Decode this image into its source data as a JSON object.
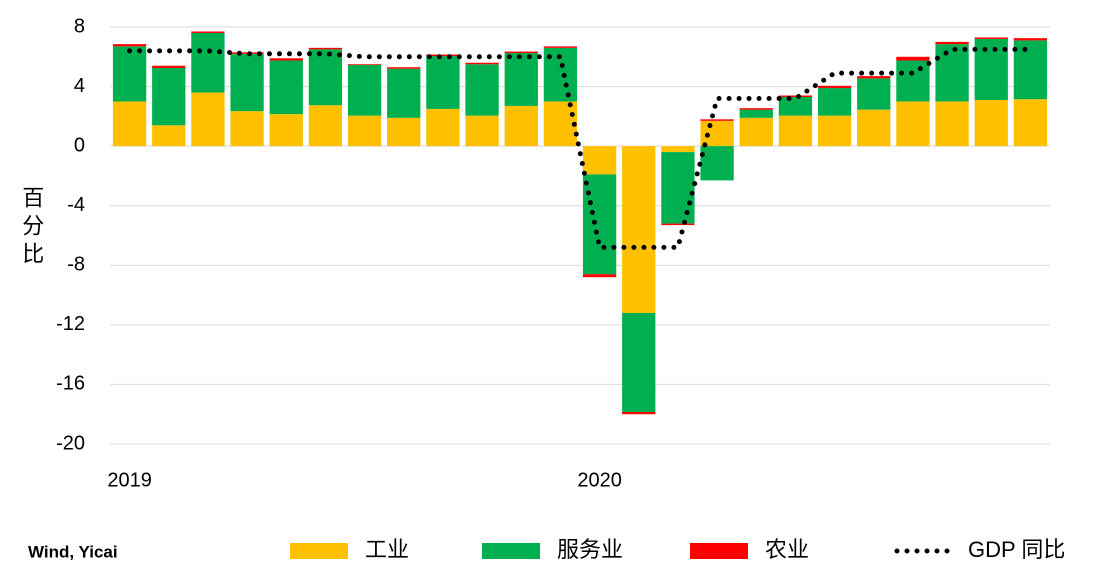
{
  "chart_data": {
    "type": "bar",
    "stacked": true,
    "y_label": "百分比",
    "source": "Wind, Yicai",
    "categories": [
      "2019",
      null,
      null,
      null,
      null,
      null,
      null,
      null,
      null,
      null,
      null,
      null,
      "2020",
      null,
      null,
      null,
      null,
      null,
      null,
      null,
      null,
      null,
      null,
      null
    ],
    "ylim": [
      -20,
      8
    ],
    "yticks": [
      8,
      4,
      0,
      -4,
      -8,
      -12,
      -16,
      -20
    ],
    "grid": true,
    "series": [
      {
        "name": "工业",
        "color": "#ffc000",
        "values": [
          3.0,
          1.4,
          3.6,
          2.35,
          2.15,
          2.75,
          2.05,
          1.9,
          2.5,
          2.05,
          2.7,
          3.0,
          -1.9,
          -11.2,
          -0.4,
          1.7,
          1.9,
          2.05,
          2.05,
          2.45,
          3.0,
          3.0,
          3.1,
          3.15
        ]
      },
      {
        "name": "服务业",
        "color": "#00b050",
        "values": [
          3.7,
          3.85,
          4.0,
          3.85,
          3.6,
          3.75,
          3.4,
          3.3,
          3.55,
          3.45,
          3.55,
          3.6,
          -6.7,
          -6.65,
          -4.8,
          -2.3,
          0.55,
          1.25,
          1.85,
          2.1,
          2.75,
          3.85,
          4.1,
          3.95
        ]
      },
      {
        "name": "农业",
        "color": "#ff0000",
        "values": [
          0.15,
          0.15,
          0.1,
          0.1,
          0.15,
          0.1,
          0.05,
          0.1,
          0.1,
          0.1,
          0.1,
          0.1,
          -0.2,
          -0.15,
          -0.1,
          0.1,
          0.1,
          0.1,
          0.15,
          0.15,
          0.25,
          0.15,
          0.1,
          0.15
        ]
      },
      {
        "name": "GDP 同比",
        "type": "line",
        "color": "#000000",
        "values": [
          6.4,
          6.4,
          6.4,
          6.2,
          6.2,
          6.2,
          6.0,
          6.0,
          6.0,
          6.0,
          6.0,
          6.0,
          -6.8,
          -6.8,
          -6.8,
          3.2,
          3.2,
          3.2,
          4.9,
          4.9,
          4.9,
          6.5,
          6.5,
          6.5
        ]
      }
    ]
  }
}
